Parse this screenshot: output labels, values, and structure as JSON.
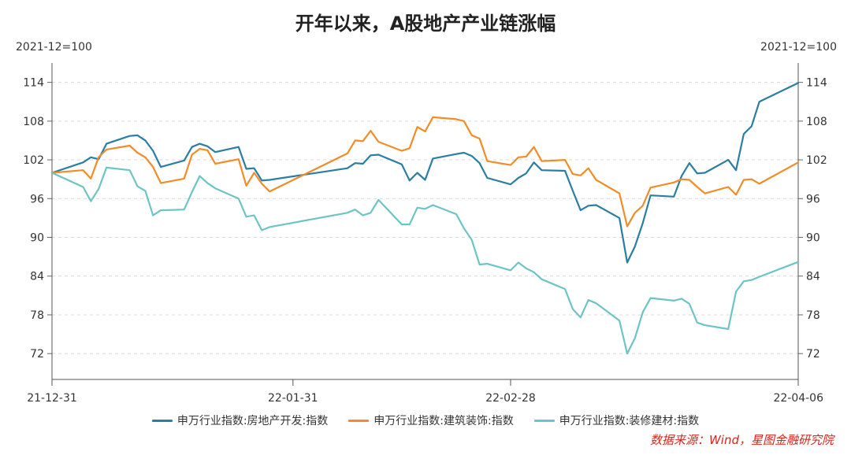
{
  "chart_data": {
    "type": "line",
    "title": "开年以来，A股地产产业链涨幅",
    "left_unit": "2021-12=100",
    "right_unit": "2021-12=100",
    "ylim": [
      68,
      117
    ],
    "yticks": [
      114,
      108,
      102,
      96,
      90,
      84,
      78,
      72
    ],
    "x_range": [
      "2021-12-31",
      "2022-04-06"
    ],
    "xtick_labels": [
      {
        "label": "21-12-31",
        "date": "2021-12-31"
      },
      {
        "label": "22-01-31",
        "date": "2022-01-31"
      },
      {
        "label": "22-02-28",
        "date": "2022-02-28"
      },
      {
        "label": "22-04-06",
        "date": "2022-04-06"
      }
    ],
    "grid": true,
    "legend_position": "bottom",
    "series": [
      {
        "name": "申万行业指数:房地产开发:指数",
        "color": "#2a7ea3",
        "points": [
          [
            "2021-12-31",
            100.0
          ],
          [
            "2022-01-04",
            101.6
          ],
          [
            "2022-01-05",
            102.4
          ],
          [
            "2022-01-06",
            102.1
          ],
          [
            "2022-01-07",
            104.5
          ],
          [
            "2022-01-10",
            105.7
          ],
          [
            "2022-01-11",
            105.8
          ],
          [
            "2022-01-12",
            105.0
          ],
          [
            "2022-01-13",
            103.4
          ],
          [
            "2022-01-14",
            100.9
          ],
          [
            "2022-01-17",
            101.9
          ],
          [
            "2022-01-18",
            104.0
          ],
          [
            "2022-01-19",
            104.5
          ],
          [
            "2022-01-20",
            104.1
          ],
          [
            "2022-01-21",
            103.2
          ],
          [
            "2022-01-24",
            104.0
          ],
          [
            "2022-01-25",
            100.6
          ],
          [
            "2022-01-26",
            100.7
          ],
          [
            "2022-01-27",
            98.8
          ],
          [
            "2022-01-28",
            98.9
          ],
          [
            "2022-02-07",
            100.7
          ],
          [
            "2022-02-08",
            101.5
          ],
          [
            "2022-02-09",
            101.4
          ],
          [
            "2022-02-10",
            102.7
          ],
          [
            "2022-02-11",
            102.8
          ],
          [
            "2022-02-14",
            101.3
          ],
          [
            "2022-02-15",
            98.8
          ],
          [
            "2022-02-16",
            100.0
          ],
          [
            "2022-02-17",
            98.9
          ],
          [
            "2022-02-18",
            102.2
          ],
          [
            "2022-02-21",
            102.9
          ],
          [
            "2022-02-22",
            103.1
          ],
          [
            "2022-02-23",
            102.6
          ],
          [
            "2022-02-24",
            101.5
          ],
          [
            "2022-02-25",
            99.2
          ],
          [
            "2022-02-28",
            98.2
          ],
          [
            "2022-03-01",
            99.2
          ],
          [
            "2022-03-02",
            99.9
          ],
          [
            "2022-03-03",
            101.6
          ],
          [
            "2022-03-04",
            100.4
          ],
          [
            "2022-03-07",
            100.3
          ],
          [
            "2022-03-08",
            97.2
          ],
          [
            "2022-03-09",
            94.2
          ],
          [
            "2022-03-10",
            94.9
          ],
          [
            "2022-03-11",
            95.0
          ],
          [
            "2022-03-14",
            93.0
          ],
          [
            "2022-03-15",
            86.1
          ],
          [
            "2022-03-16",
            88.6
          ],
          [
            "2022-03-17",
            92.2
          ],
          [
            "2022-03-18",
            96.5
          ],
          [
            "2022-03-21",
            96.3
          ],
          [
            "2022-03-22",
            99.5
          ],
          [
            "2022-03-23",
            101.5
          ],
          [
            "2022-03-24",
            99.9
          ],
          [
            "2022-03-25",
            100.0
          ],
          [
            "2022-03-28",
            102.0
          ],
          [
            "2022-03-29",
            100.4
          ],
          [
            "2022-03-30",
            106.0
          ],
          [
            "2022-03-31",
            107.2
          ],
          [
            "2022-04-01",
            111.0
          ],
          [
            "2022-04-06",
            113.9
          ]
        ]
      },
      {
        "name": "申万行业指数:建筑装饰:指数",
        "color": "#f28c28",
        "points": [
          [
            "2021-12-31",
            100.0
          ],
          [
            "2022-01-04",
            100.4
          ],
          [
            "2022-01-05",
            99.1
          ],
          [
            "2022-01-06",
            102.4
          ],
          [
            "2022-01-07",
            103.6
          ],
          [
            "2022-01-10",
            104.2
          ],
          [
            "2022-01-11",
            103.1
          ],
          [
            "2022-01-12",
            102.4
          ],
          [
            "2022-01-13",
            100.9
          ],
          [
            "2022-01-14",
            98.4
          ],
          [
            "2022-01-17",
            99.1
          ],
          [
            "2022-01-18",
            102.8
          ],
          [
            "2022-01-19",
            103.7
          ],
          [
            "2022-01-20",
            103.5
          ],
          [
            "2022-01-21",
            101.4
          ],
          [
            "2022-01-24",
            102.1
          ],
          [
            "2022-01-25",
            98.0
          ],
          [
            "2022-01-26",
            100.0
          ],
          [
            "2022-01-27",
            98.3
          ],
          [
            "2022-01-28",
            97.1
          ],
          [
            "2022-02-07",
            103.0
          ],
          [
            "2022-02-08",
            105.0
          ],
          [
            "2022-02-09",
            104.9
          ],
          [
            "2022-02-10",
            106.5
          ],
          [
            "2022-02-11",
            104.8
          ],
          [
            "2022-02-14",
            103.4
          ],
          [
            "2022-02-15",
            103.8
          ],
          [
            "2022-02-16",
            107.1
          ],
          [
            "2022-02-17",
            106.4
          ],
          [
            "2022-02-18",
            108.6
          ],
          [
            "2022-02-21",
            108.3
          ],
          [
            "2022-02-22",
            108.0
          ],
          [
            "2022-02-23",
            105.8
          ],
          [
            "2022-02-24",
            105.3
          ],
          [
            "2022-02-25",
            101.8
          ],
          [
            "2022-02-28",
            101.2
          ],
          [
            "2022-03-01",
            102.4
          ],
          [
            "2022-03-02",
            102.5
          ],
          [
            "2022-03-03",
            104.0
          ],
          [
            "2022-03-04",
            101.8
          ],
          [
            "2022-03-07",
            102.0
          ],
          [
            "2022-03-08",
            99.8
          ],
          [
            "2022-03-09",
            99.6
          ],
          [
            "2022-03-10",
            100.7
          ],
          [
            "2022-03-11",
            98.9
          ],
          [
            "2022-03-14",
            96.8
          ],
          [
            "2022-03-15",
            91.7
          ],
          [
            "2022-03-16",
            93.8
          ],
          [
            "2022-03-17",
            94.9
          ],
          [
            "2022-03-18",
            97.7
          ],
          [
            "2022-03-21",
            98.5
          ],
          [
            "2022-03-22",
            99.0
          ],
          [
            "2022-03-23",
            98.9
          ],
          [
            "2022-03-24",
            97.8
          ],
          [
            "2022-03-25",
            96.8
          ],
          [
            "2022-03-28",
            97.8
          ],
          [
            "2022-03-29",
            96.6
          ],
          [
            "2022-03-30",
            98.9
          ],
          [
            "2022-03-31",
            99.0
          ],
          [
            "2022-04-01",
            98.3
          ],
          [
            "2022-04-06",
            101.6
          ]
        ]
      },
      {
        "name": "申万行业指数:装修建材:指数",
        "color": "#6cc5c4",
        "points": [
          [
            "2021-12-31",
            100.0
          ],
          [
            "2022-01-04",
            97.8
          ],
          [
            "2022-01-05",
            95.6
          ],
          [
            "2022-01-06",
            97.5
          ],
          [
            "2022-01-07",
            100.8
          ],
          [
            "2022-01-10",
            100.4
          ],
          [
            "2022-01-11",
            97.9
          ],
          [
            "2022-01-12",
            97.2
          ],
          [
            "2022-01-13",
            93.4
          ],
          [
            "2022-01-14",
            94.2
          ],
          [
            "2022-01-17",
            94.3
          ],
          [
            "2022-01-18",
            97.0
          ],
          [
            "2022-01-19",
            99.5
          ],
          [
            "2022-01-20",
            98.4
          ],
          [
            "2022-01-21",
            97.6
          ],
          [
            "2022-01-24",
            96.0
          ],
          [
            "2022-01-25",
            93.2
          ],
          [
            "2022-01-26",
            93.4
          ],
          [
            "2022-01-27",
            91.1
          ],
          [
            "2022-01-28",
            91.6
          ],
          [
            "2022-02-07",
            93.8
          ],
          [
            "2022-02-08",
            94.3
          ],
          [
            "2022-02-09",
            93.4
          ],
          [
            "2022-02-10",
            93.8
          ],
          [
            "2022-02-11",
            95.8
          ],
          [
            "2022-02-14",
            92.0
          ],
          [
            "2022-02-15",
            92.0
          ],
          [
            "2022-02-16",
            94.6
          ],
          [
            "2022-02-17",
            94.4
          ],
          [
            "2022-02-18",
            95.0
          ],
          [
            "2022-02-21",
            93.6
          ],
          [
            "2022-02-22",
            91.4
          ],
          [
            "2022-02-23",
            89.6
          ],
          [
            "2022-02-24",
            85.8
          ],
          [
            "2022-02-25",
            85.9
          ],
          [
            "2022-02-28",
            84.9
          ],
          [
            "2022-03-01",
            86.1
          ],
          [
            "2022-03-02",
            85.2
          ],
          [
            "2022-03-03",
            84.6
          ],
          [
            "2022-03-04",
            83.5
          ],
          [
            "2022-03-07",
            82.0
          ],
          [
            "2022-03-08",
            78.9
          ],
          [
            "2022-03-09",
            77.6
          ],
          [
            "2022-03-10",
            80.3
          ],
          [
            "2022-03-11",
            79.8
          ],
          [
            "2022-03-14",
            77.1
          ],
          [
            "2022-03-15",
            72.0
          ],
          [
            "2022-03-16",
            74.4
          ],
          [
            "2022-03-17",
            78.4
          ],
          [
            "2022-03-18",
            80.6
          ],
          [
            "2022-03-21",
            80.2
          ],
          [
            "2022-03-22",
            80.5
          ],
          [
            "2022-03-23",
            79.7
          ],
          [
            "2022-03-24",
            76.8
          ],
          [
            "2022-03-25",
            76.4
          ],
          [
            "2022-03-28",
            75.8
          ],
          [
            "2022-03-29",
            81.6
          ],
          [
            "2022-03-30",
            83.2
          ],
          [
            "2022-03-31",
            83.4
          ],
          [
            "2022-04-01",
            83.9
          ],
          [
            "2022-04-06",
            86.2
          ]
        ]
      }
    ]
  },
  "source_note": "数据来源：Wind，星图金融研究院"
}
